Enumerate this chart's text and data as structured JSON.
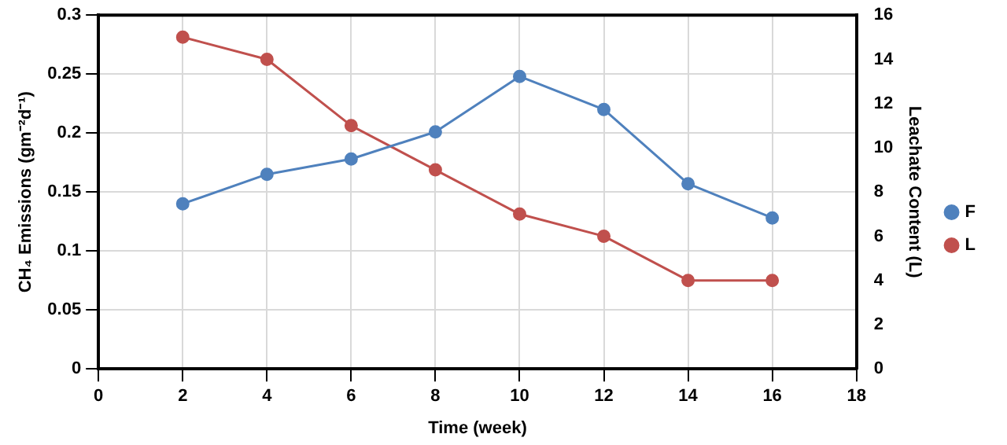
{
  "chart_data": {
    "type": "line",
    "xlabel": "Time (week)",
    "ylabel": "CH₄ Emissions (gm⁻²d⁻¹)",
    "y2label": "Leachate Content (L)",
    "x": [
      2,
      4,
      6,
      8,
      10,
      12,
      14,
      16
    ],
    "series": [
      {
        "name": "F",
        "color": "#4f81bd",
        "values": [
          0.14,
          0.165,
          0.178,
          0.201,
          0.248,
          0.22,
          0.157,
          0.128
        ]
      },
      {
        "name": "L",
        "color": "#c0504d",
        "axis": "y2",
        "values": [
          15,
          14,
          11,
          9,
          7,
          6,
          4,
          4
        ]
      }
    ],
    "xlim": [
      0,
      18
    ],
    "xticks": [
      0,
      2,
      4,
      6,
      8,
      10,
      12,
      14,
      16,
      18
    ],
    "ylim": [
      0,
      0.3
    ],
    "yticks": [
      0,
      0.05,
      0.1,
      0.15,
      0.2,
      0.25,
      0.3
    ],
    "y2lim": [
      0,
      16
    ],
    "y2ticks": [
      0,
      2,
      4,
      6,
      8,
      10,
      12,
      14,
      16
    ],
    "grid": true,
    "legend": "right",
    "marker": "circle",
    "line_style": "solid"
  }
}
